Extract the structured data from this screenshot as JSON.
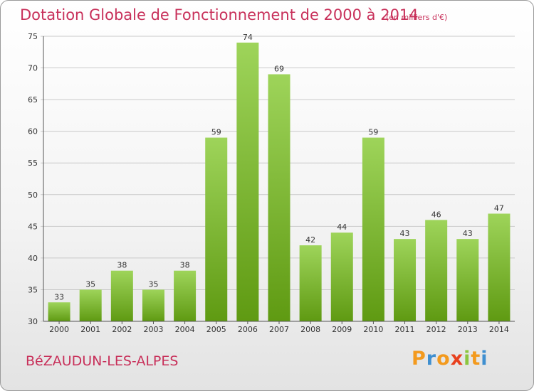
{
  "title": "Dotation Globale de Fonctionnement de 2000 à 2014",
  "subtitle": "(en milliers d'€)",
  "commune": "BéZAUDUN-LES-ALPES",
  "logo": {
    "text": "Proxiti",
    "letters": [
      {
        "char": "P",
        "color": "#f39a1e"
      },
      {
        "char": "r",
        "color": "#3f8fd0"
      },
      {
        "char": "o",
        "color": "#f39a1e"
      },
      {
        "char": "x",
        "color": "#e8411f"
      },
      {
        "char": "i",
        "color": "#8cc63f"
      },
      {
        "char": "t",
        "color": "#f39a1e"
      },
      {
        "char": "i",
        "color": "#3f8fd0"
      }
    ]
  },
  "colors": {
    "title": "#c8305a",
    "bar_top": "#9ed45a",
    "bar_bottom": "#5f9a12",
    "grid": "#c9c9c9",
    "axis": "#555555",
    "text": "#333333"
  },
  "chart_data": {
    "type": "bar",
    "title": "Dotation Globale de Fonctionnement de 2000 à 2014",
    "subtitle": "(en milliers d'€)",
    "xlabel": "",
    "ylabel": "",
    "categories": [
      "2000",
      "2001",
      "2002",
      "2003",
      "2004",
      "2005",
      "2006",
      "2007",
      "2008",
      "2009",
      "2010",
      "2011",
      "2012",
      "2013",
      "2014"
    ],
    "values": [
      33,
      35,
      38,
      35,
      38,
      59,
      74,
      69,
      42,
      44,
      59,
      43,
      46,
      43,
      47
    ],
    "ylim": [
      30,
      75
    ],
    "yticks": [
      30,
      35,
      40,
      45,
      50,
      55,
      60,
      65,
      70,
      75
    ],
    "grid": true,
    "legend": "none"
  }
}
